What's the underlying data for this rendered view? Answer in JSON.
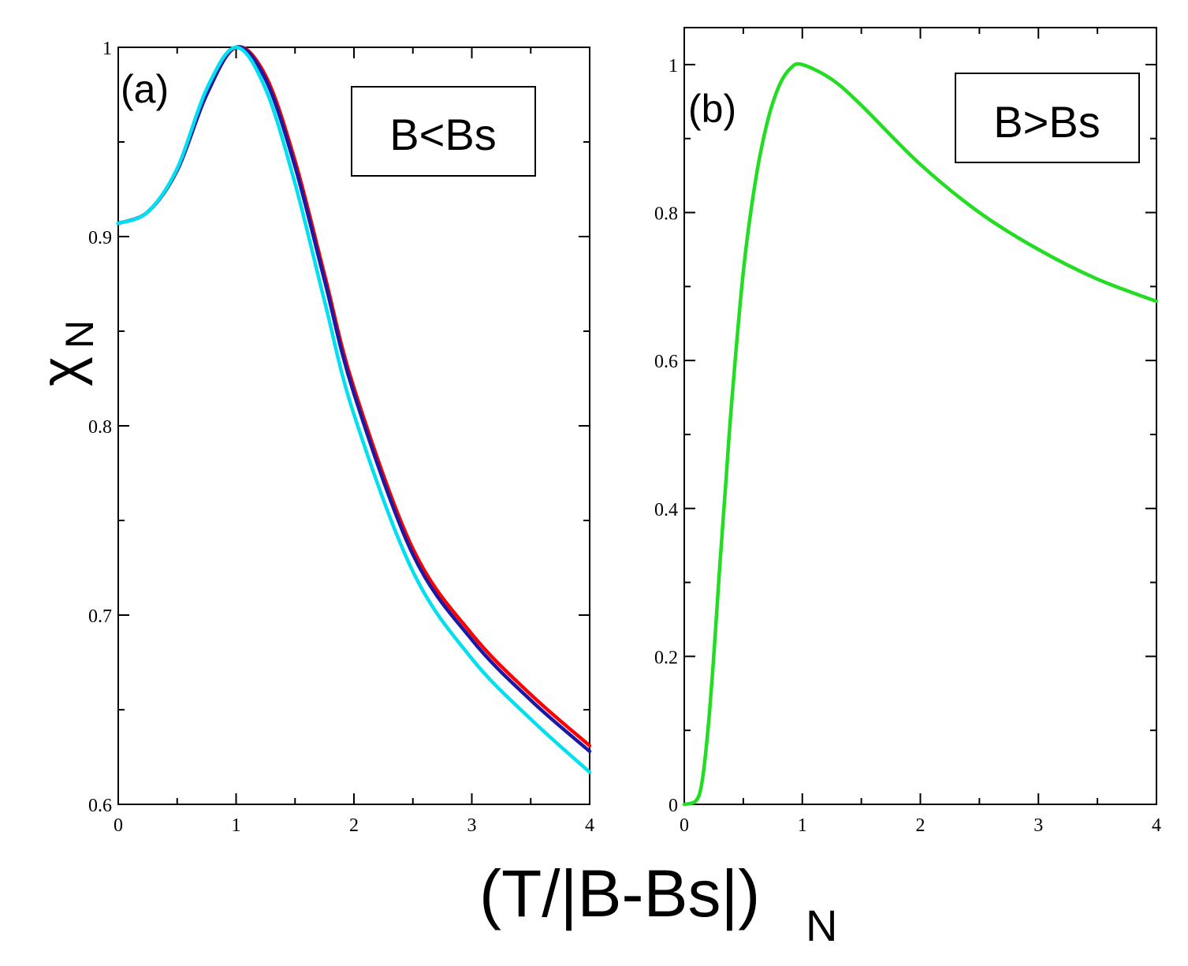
{
  "chart_data": [
    {
      "type": "line",
      "panel_label": "(a)",
      "legend_text": "B<Bs",
      "ylabel": "χ",
      "ylabel_sub": "N",
      "xlim": [
        0,
        4
      ],
      "ylim": [
        0.6,
        1.0
      ],
      "x_ticks": [
        "0",
        "1",
        "2",
        "3",
        "4"
      ],
      "y_ticks": [
        "0.6",
        "0.7",
        "0.8",
        "0.9",
        "1"
      ],
      "series": [
        {
          "color": "#ff0000",
          "x": [
            0,
            0.25,
            0.5,
            0.75,
            1.0,
            1.25,
            1.5,
            1.75,
            2.0,
            2.5,
            3.0,
            3.5,
            4.0
          ],
          "y": [
            0.907,
            0.913,
            0.935,
            0.975,
            1.0,
            0.985,
            0.94,
            0.88,
            0.82,
            0.735,
            0.69,
            0.658,
            0.631
          ]
        },
        {
          "color": "#1a1aa6",
          "x": [
            0,
            0.25,
            0.5,
            0.75,
            1.0,
            1.25,
            1.5,
            1.75,
            2.0,
            2.5,
            3.0,
            3.5,
            4.0
          ],
          "y": [
            0.907,
            0.913,
            0.935,
            0.975,
            1.0,
            0.983,
            0.937,
            0.877,
            0.817,
            0.732,
            0.687,
            0.655,
            0.628
          ]
        },
        {
          "color": "#00e0f0",
          "x": [
            0,
            0.25,
            0.5,
            0.75,
            1.0,
            1.25,
            1.5,
            1.75,
            2.0,
            2.5,
            3.0,
            3.5,
            4.0
          ],
          "y": [
            0.907,
            0.913,
            0.936,
            0.978,
            1.0,
            0.978,
            0.928,
            0.866,
            0.806,
            0.723,
            0.677,
            0.645,
            0.617
          ]
        }
      ]
    },
    {
      "type": "line",
      "panel_label": "(b)",
      "legend_text": "B>Bs",
      "xlim": [
        0,
        4
      ],
      "ylim": [
        0,
        1.05
      ],
      "x_ticks": [
        "0",
        "1",
        "2",
        "3",
        "4"
      ],
      "y_ticks": [
        "0",
        "0.2",
        "0.4",
        "0.6",
        "0.8",
        "1"
      ],
      "series": [
        {
          "color": "#22dd22",
          "x": [
            0,
            0.1,
            0.15,
            0.2,
            0.25,
            0.3,
            0.35,
            0.4,
            0.5,
            0.6,
            0.7,
            0.8,
            0.9,
            1.0,
            1.25,
            1.5,
            2.0,
            2.5,
            3.0,
            3.5,
            4.0
          ],
          "y": [
            0,
            0.005,
            0.03,
            0.1,
            0.2,
            0.32,
            0.43,
            0.54,
            0.72,
            0.84,
            0.92,
            0.97,
            0.995,
            1.0,
            0.98,
            0.945,
            0.865,
            0.8,
            0.75,
            0.71,
            0.68
          ]
        }
      ]
    }
  ],
  "xlabel": "(T/|B-Bs|)",
  "xlabel_sub": "N"
}
